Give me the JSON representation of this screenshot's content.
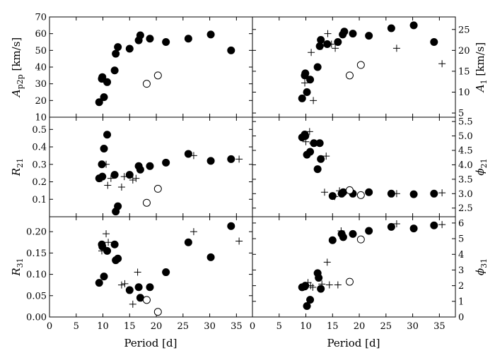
{
  "chart_data": {
    "type": "scatter",
    "xlabel": "Period [d]",
    "xlim": [
      0,
      38
    ],
    "xticks": [
      0,
      5,
      10,
      15,
      20,
      25,
      30,
      35
    ],
    "series_legend": {
      "filled": "filled circles",
      "open": "open circles",
      "plus": "plus markers"
    },
    "panels": [
      {
        "id": "app",
        "side": "left",
        "row": 0,
        "ylabel": "A_p2p [km/s]",
        "ylim": [
          10,
          70
        ],
        "yticks": [
          10,
          20,
          30,
          40,
          50,
          60,
          70
        ],
        "filled": [
          [
            9.3,
            19
          ],
          [
            9.8,
            33
          ],
          [
            9.9,
            34
          ],
          [
            10.2,
            22
          ],
          [
            10.8,
            31
          ],
          [
            12.2,
            38
          ],
          [
            12.4,
            48
          ],
          [
            12.8,
            52
          ],
          [
            15.0,
            51
          ],
          [
            16.7,
            56
          ],
          [
            17.0,
            59
          ],
          [
            18.8,
            57
          ],
          [
            21.8,
            55
          ],
          [
            26.0,
            57
          ],
          [
            30.2,
            59.5
          ],
          [
            34.0,
            50
          ]
        ],
        "open": [
          [
            18.2,
            30
          ],
          [
            20.3,
            35
          ]
        ],
        "plus": []
      },
      {
        "id": "a1",
        "side": "right",
        "row": 0,
        "ylabel": "A_1 [km/s]",
        "ylim": [
          4,
          28
        ],
        "yticks": [
          5,
          10,
          15,
          20,
          25
        ],
        "filled": [
          [
            9.3,
            8.5
          ],
          [
            9.8,
            14
          ],
          [
            9.9,
            14.5
          ],
          [
            10.2,
            10
          ],
          [
            10.8,
            13
          ],
          [
            12.2,
            16
          ],
          [
            12.6,
            21
          ],
          [
            12.8,
            22.5
          ],
          [
            14.0,
            21.5
          ],
          [
            16.0,
            22
          ],
          [
            16.9,
            23.8
          ],
          [
            17.2,
            24.5
          ],
          [
            18.8,
            24
          ],
          [
            21.8,
            23.5
          ],
          [
            26.0,
            25.3
          ],
          [
            30.2,
            26
          ],
          [
            34.0,
            22
          ]
        ],
        "open": [
          [
            18.2,
            14
          ],
          [
            20.3,
            16.5
          ]
        ],
        "plus": [
          [
            9.8,
            12.2
          ],
          [
            10.2,
            13.5
          ],
          [
            11.0,
            19.5
          ],
          [
            11.4,
            8
          ],
          [
            13.0,
            21
          ],
          [
            14.1,
            24
          ],
          [
            14.8,
            21.5
          ],
          [
            15.5,
            20.5
          ],
          [
            27.0,
            20.5
          ],
          [
            35.5,
            16.8
          ]
        ]
      },
      {
        "id": "r21",
        "side": "left",
        "row": 1,
        "ylabel": "R_21",
        "ylim": [
          0.0,
          0.57
        ],
        "yticks": [
          0.1,
          0.2,
          0.3,
          0.4,
          0.5
        ],
        "filled": [
          [
            9.3,
            0.22
          ],
          [
            9.8,
            0.3
          ],
          [
            9.9,
            0.23
          ],
          [
            10.2,
            0.39
          ],
          [
            10.8,
            0.47
          ],
          [
            12.2,
            0.24
          ],
          [
            12.4,
            0.03
          ],
          [
            12.8,
            0.06
          ],
          [
            15.0,
            0.24
          ],
          [
            16.7,
            0.29
          ],
          [
            17.0,
            0.27
          ],
          [
            18.8,
            0.29
          ],
          [
            21.8,
            0.31
          ],
          [
            26.0,
            0.36
          ],
          [
            30.2,
            0.32
          ],
          [
            34.0,
            0.33
          ]
        ],
        "open": [
          [
            18.2,
            0.08
          ],
          [
            20.3,
            0.16
          ]
        ],
        "plus": [
          [
            9.8,
            0.22
          ],
          [
            10.6,
            0.3
          ],
          [
            10.9,
            0.18
          ],
          [
            11.5,
            0.22
          ],
          [
            13.5,
            0.17
          ],
          [
            14.0,
            0.23
          ],
          [
            15.6,
            0.21
          ],
          [
            16.2,
            0.22
          ],
          [
            27.0,
            0.35
          ],
          [
            35.5,
            0.33
          ]
        ]
      },
      {
        "id": "phi21",
        "side": "right",
        "row": 1,
        "ylabel": "phi_21",
        "ylim": [
          2.2,
          5.65
        ],
        "yticks": [
          2.5,
          3.0,
          3.5,
          4.0,
          4.5,
          5.0,
          5.5
        ],
        "filled": [
          [
            9.3,
            4.95
          ],
          [
            9.8,
            5.05
          ],
          [
            9.9,
            5.0
          ],
          [
            10.2,
            4.35
          ],
          [
            10.8,
            4.45
          ],
          [
            11.5,
            4.75
          ],
          [
            12.2,
            3.85
          ],
          [
            12.6,
            4.75
          ],
          [
            12.8,
            4.2
          ],
          [
            15.0,
            2.92
          ],
          [
            16.7,
            3.0
          ],
          [
            17.0,
            3.05
          ],
          [
            18.8,
            3.0
          ],
          [
            21.8,
            3.05
          ],
          [
            26.0,
            3.0
          ],
          [
            30.2,
            2.98
          ],
          [
            34.0,
            3.0
          ]
        ],
        "open": [
          [
            18.2,
            3.12
          ],
          [
            20.3,
            2.95
          ]
        ],
        "plus": [
          [
            10.0,
            4.8
          ],
          [
            10.7,
            5.15
          ],
          [
            11.3,
            4.75
          ],
          [
            13.5,
            3.05
          ],
          [
            13.8,
            4.3
          ],
          [
            15.4,
            2.9
          ],
          [
            16.3,
            3.1
          ],
          [
            16.8,
            3.0
          ],
          [
            27.0,
            3.0
          ],
          [
            35.5,
            3.03
          ]
        ]
      },
      {
        "id": "r31",
        "side": "left",
        "row": 2,
        "ylabel": "R_31",
        "ylim": [
          0.0,
          0.235
        ],
        "yticks": [
          0.0,
          0.05,
          0.1,
          0.15,
          0.2
        ],
        "filled": [
          [
            9.3,
            0.08
          ],
          [
            9.8,
            0.17
          ],
          [
            9.9,
            0.165
          ],
          [
            10.2,
            0.095
          ],
          [
            10.8,
            0.155
          ],
          [
            12.2,
            0.17
          ],
          [
            12.4,
            0.133
          ],
          [
            12.8,
            0.137
          ],
          [
            15.0,
            0.063
          ],
          [
            16.7,
            0.07
          ],
          [
            17.0,
            0.045
          ],
          [
            18.8,
            0.07
          ],
          [
            21.8,
            0.105
          ],
          [
            26.0,
            0.175
          ],
          [
            30.2,
            0.14
          ],
          [
            34.0,
            0.213
          ]
        ],
        "open": [
          [
            18.2,
            0.04
          ],
          [
            20.3,
            0.012
          ]
        ],
        "plus": [
          [
            9.8,
            0.155
          ],
          [
            10.6,
            0.195
          ],
          [
            11.0,
            0.175
          ],
          [
            13.5,
            0.075
          ],
          [
            14.1,
            0.078
          ],
          [
            15.6,
            0.03
          ],
          [
            16.5,
            0.105
          ],
          [
            27.0,
            0.2
          ],
          [
            35.5,
            0.178
          ]
        ]
      },
      {
        "id": "phi31",
        "side": "right",
        "row": 2,
        "ylabel": "phi_31",
        "ylim": [
          0.0,
          6.4
        ],
        "yticks": [
          0,
          1,
          2,
          3,
          4,
          5,
          6
        ],
        "filled": [
          [
            9.3,
            1.9
          ],
          [
            9.8,
            1.95
          ],
          [
            9.9,
            2.0
          ],
          [
            10.2,
            0.7
          ],
          [
            10.8,
            1.1
          ],
          [
            12.2,
            2.8
          ],
          [
            12.4,
            2.5
          ],
          [
            12.8,
            1.8
          ],
          [
            15.0,
            4.9
          ],
          [
            16.7,
            5.3
          ],
          [
            17.0,
            5.1
          ],
          [
            18.8,
            5.3
          ],
          [
            21.8,
            5.5
          ],
          [
            26.0,
            5.75
          ],
          [
            30.2,
            5.65
          ],
          [
            34.0,
            5.85
          ]
        ],
        "open": [
          [
            18.2,
            2.25
          ],
          [
            20.3,
            4.95
          ]
        ],
        "plus": [
          [
            9.8,
            1.95
          ],
          [
            10.4,
            2.2
          ],
          [
            10.9,
            2.0
          ],
          [
            11.3,
            1.9
          ],
          [
            13.0,
            2.1
          ],
          [
            14.0,
            3.5
          ],
          [
            14.4,
            2.05
          ],
          [
            16.0,
            2.05
          ],
          [
            16.6,
            5.5
          ],
          [
            27.0,
            5.95
          ],
          [
            35.5,
            5.9
          ]
        ]
      }
    ]
  }
}
